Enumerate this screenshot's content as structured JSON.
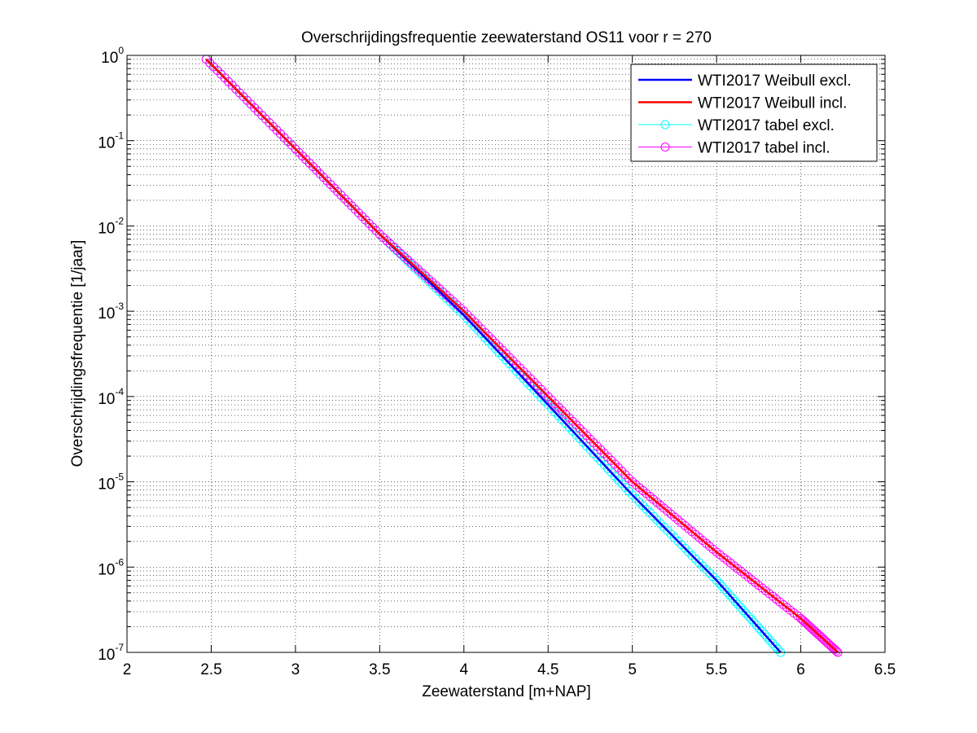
{
  "chart_data": {
    "type": "line",
    "title": "Overschrijdingsfrequentie zeewaterstand OS11 voor r = 270",
    "xlabel": "Zeewaterstand [m+NAP]",
    "ylabel": "Overschrijdingsfrequentie [1/jaar]",
    "xlim": [
      2,
      6.5
    ],
    "ylim": [
      1e-07,
      1
    ],
    "yscale": "log",
    "grid": true,
    "legend_position": "top-right",
    "x_ticks": [
      "2",
      "2.5",
      "3",
      "3.5",
      "4",
      "4.5",
      "5",
      "5.5",
      "6",
      "6.5"
    ],
    "y_ticks": [
      {
        "base": "10",
        "exp": "0"
      },
      {
        "base": "10",
        "exp": "-1"
      },
      {
        "base": "10",
        "exp": "-2"
      },
      {
        "base": "10",
        "exp": "-3"
      },
      {
        "base": "10",
        "exp": "-4"
      },
      {
        "base": "10",
        "exp": "-5"
      },
      {
        "base": "10",
        "exp": "-6"
      },
      {
        "base": "10",
        "exp": "-7"
      }
    ],
    "series": [
      {
        "name": "WTI2017 Weibull excl.",
        "color": "#0000ff",
        "marker": "none",
        "x": [
          2.47,
          3.0,
          3.5,
          4.0,
          4.5,
          5.0,
          5.5,
          5.88
        ],
        "y": [
          0.9,
          0.08,
          0.008,
          0.0009,
          8e-05,
          7e-06,
          7e-07,
          1e-07
        ]
      },
      {
        "name": "WTI2017 Weibull incl.",
        "color": "#ff0000",
        "marker": "none",
        "x": [
          2.47,
          3.0,
          3.5,
          4.0,
          4.5,
          5.0,
          5.5,
          6.0,
          6.22
        ],
        "y": [
          0.9,
          0.08,
          0.008,
          0.001,
          0.0001,
          1e-05,
          1.5e-06,
          2.5e-07,
          1e-07
        ]
      },
      {
        "name": "WTI2017 tabel excl.",
        "color": "#00ffff",
        "marker": "circle",
        "x": [
          2.47,
          3.0,
          3.5,
          4.0,
          4.5,
          5.0,
          5.5,
          5.88
        ],
        "y": [
          0.9,
          0.08,
          0.008,
          0.0009,
          8e-05,
          7e-06,
          7e-07,
          1e-07
        ]
      },
      {
        "name": "WTI2017 tabel incl.",
        "color": "#ff00ff",
        "marker": "circle",
        "x": [
          2.47,
          3.0,
          3.5,
          4.0,
          4.5,
          5.0,
          5.5,
          6.0,
          6.22
        ],
        "y": [
          0.9,
          0.08,
          0.008,
          0.001,
          0.0001,
          1e-05,
          1.5e-06,
          2.5e-07,
          1e-07
        ]
      }
    ]
  }
}
